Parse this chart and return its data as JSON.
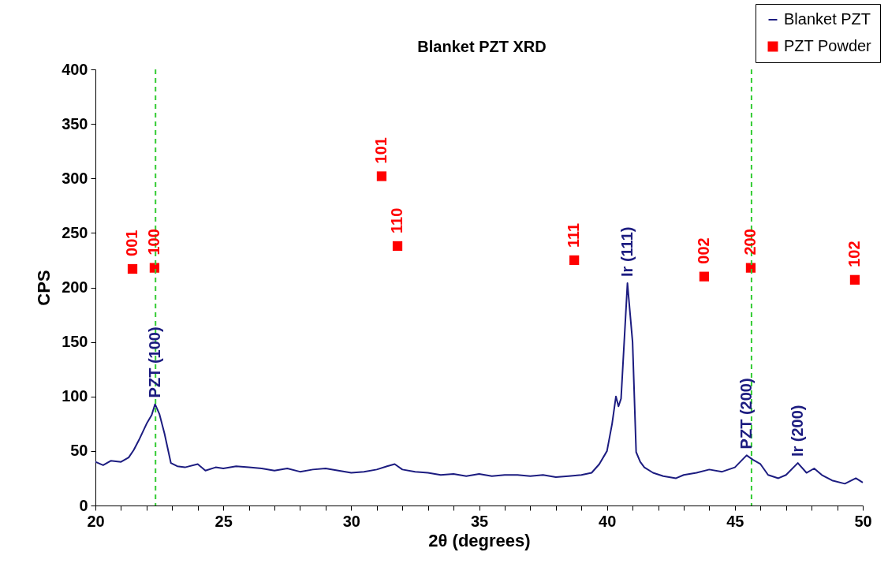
{
  "chart_data": {
    "type": "line",
    "title": "Blanket PZT XRD",
    "xlabel": "2θ (degrees)",
    "ylabel": "CPS",
    "xlim": [
      20,
      50
    ],
    "ylim": [
      0,
      400
    ],
    "xticks": [
      20,
      {
        "value": 21,
        "label": null
      },
      {
        "value": 22,
        "label": null
      },
      {
        "value": 23,
        "label": null
      },
      {
        "value": 24,
        "label": null
      },
      25,
      {
        "value": 26,
        "label": null
      },
      {
        "value": 27,
        "label": null
      },
      {
        "value": 28,
        "label": null
      },
      {
        "value": 29,
        "label": null
      },
      30,
      {
        "value": 31,
        "label": null
      },
      {
        "value": 32,
        "label": null
      },
      {
        "value": 33,
        "label": null
      },
      {
        "value": 34,
        "label": null
      },
      35,
      {
        "value": 36,
        "label": null
      },
      {
        "value": 37,
        "label": null
      },
      {
        "value": 38,
        "label": null
      },
      {
        "value": 39,
        "label": null
      },
      40,
      {
        "value": 41,
        "label": null
      },
      {
        "value": 42,
        "label": null
      },
      {
        "value": 43,
        "label": null
      },
      {
        "value": 44,
        "label": null
      },
      45,
      {
        "value": 46,
        "label": null
      },
      {
        "value": 47,
        "label": null
      },
      {
        "value": 48,
        "label": null
      },
      {
        "value": 49,
        "label": null
      },
      50
    ],
    "yticks": [
      0,
      50,
      100,
      150,
      200,
      250,
      300,
      350,
      400
    ],
    "legend": "top right",
    "grid": false,
    "series": [
      {
        "name": "Blanket PZT",
        "type": "line",
        "color": "#1c1c80",
        "x": [
          20,
          20.3,
          20.6,
          21,
          21.3,
          21.5,
          21.7,
          22,
          22.2,
          22.33,
          22.5,
          22.7,
          22.95,
          23.2,
          23.5,
          24,
          24.3,
          24.7,
          25,
          25.5,
          26,
          26.5,
          27,
          27.5,
          28,
          28.5,
          29,
          29.5,
          30,
          30.5,
          31,
          31.4,
          31.7,
          32,
          32.5,
          33,
          33.5,
          34,
          34.5,
          35,
          35.5,
          36,
          36.5,
          37,
          37.5,
          38,
          38.5,
          39,
          39.4,
          39.7,
          40.0,
          40.2,
          40.35,
          40.45,
          40.55,
          40.8,
          41.0,
          41.14,
          41.3,
          41.46,
          41.8,
          42.2,
          42.7,
          43.0,
          43.5,
          44.0,
          44.5,
          45.0,
          45.46,
          45.7,
          46.0,
          46.3,
          46.7,
          47.0,
          47.46,
          47.8,
          48.1,
          48.4,
          48.8,
          49.3,
          49.73,
          50
        ],
        "values": [
          40,
          37,
          41,
          40,
          44,
          51,
          60,
          75,
          83,
          93,
          84,
          66,
          39,
          36,
          35,
          38,
          32,
          35,
          34,
          36,
          35,
          34,
          32,
          34,
          31,
          33,
          34,
          32,
          30,
          31,
          33,
          36,
          38,
          33,
          31,
          30,
          28,
          29,
          27,
          29,
          27,
          28,
          28,
          27,
          28,
          26,
          27,
          28,
          30,
          38,
          50,
          75,
          100,
          91,
          98,
          204,
          150,
          49,
          40,
          35,
          30,
          27,
          25,
          28,
          30,
          33,
          31,
          35,
          46,
          42,
          38,
          28,
          25,
          28,
          39,
          30,
          34,
          28,
          23,
          20,
          25,
          21
        ]
      },
      {
        "name": "PZT Powder",
        "type": "scatter",
        "color": "#ff0000",
        "marker": "square",
        "x": [
          21.45,
          22.31,
          31.19,
          31.81,
          38.72,
          43.8,
          45.62,
          49.69
        ],
        "values": [
          217,
          218,
          302,
          238,
          225,
          210,
          218,
          207
        ]
      }
    ],
    "ref_lines": [
      {
        "axis": "x",
        "value": 22.35,
        "color": "#33cc33",
        "line_style": "dashed"
      },
      {
        "axis": "x",
        "value": 45.65,
        "color": "#33cc33",
        "line_style": "dashed"
      }
    ],
    "annotations": [
      {
        "text": "001",
        "x": 21.45,
        "y": 217
      },
      {
        "text": "100",
        "x": 22.31,
        "y": 218
      },
      {
        "text": "101",
        "x": 31.19,
        "y": 302
      },
      {
        "text": "110",
        "x": 31.81,
        "y": 238
      },
      {
        "text": "111",
        "x": 38.72,
        "y": 225
      },
      {
        "text": "002",
        "x": 43.8,
        "y": 210
      },
      {
        "text": "200",
        "x": 45.62,
        "y": 218
      },
      {
        "text": "102",
        "x": 49.69,
        "y": 207
      },
      {
        "text": "PZT (100)",
        "x": 22.33,
        "y": 93
      },
      {
        "text": "Ir (111)",
        "x": 40.8,
        "y": 204
      },
      {
        "text": "PZT (200)",
        "x": 45.46,
        "y": 46
      },
      {
        "text": "Ir (200)",
        "x": 47.46,
        "y": 39
      }
    ]
  }
}
